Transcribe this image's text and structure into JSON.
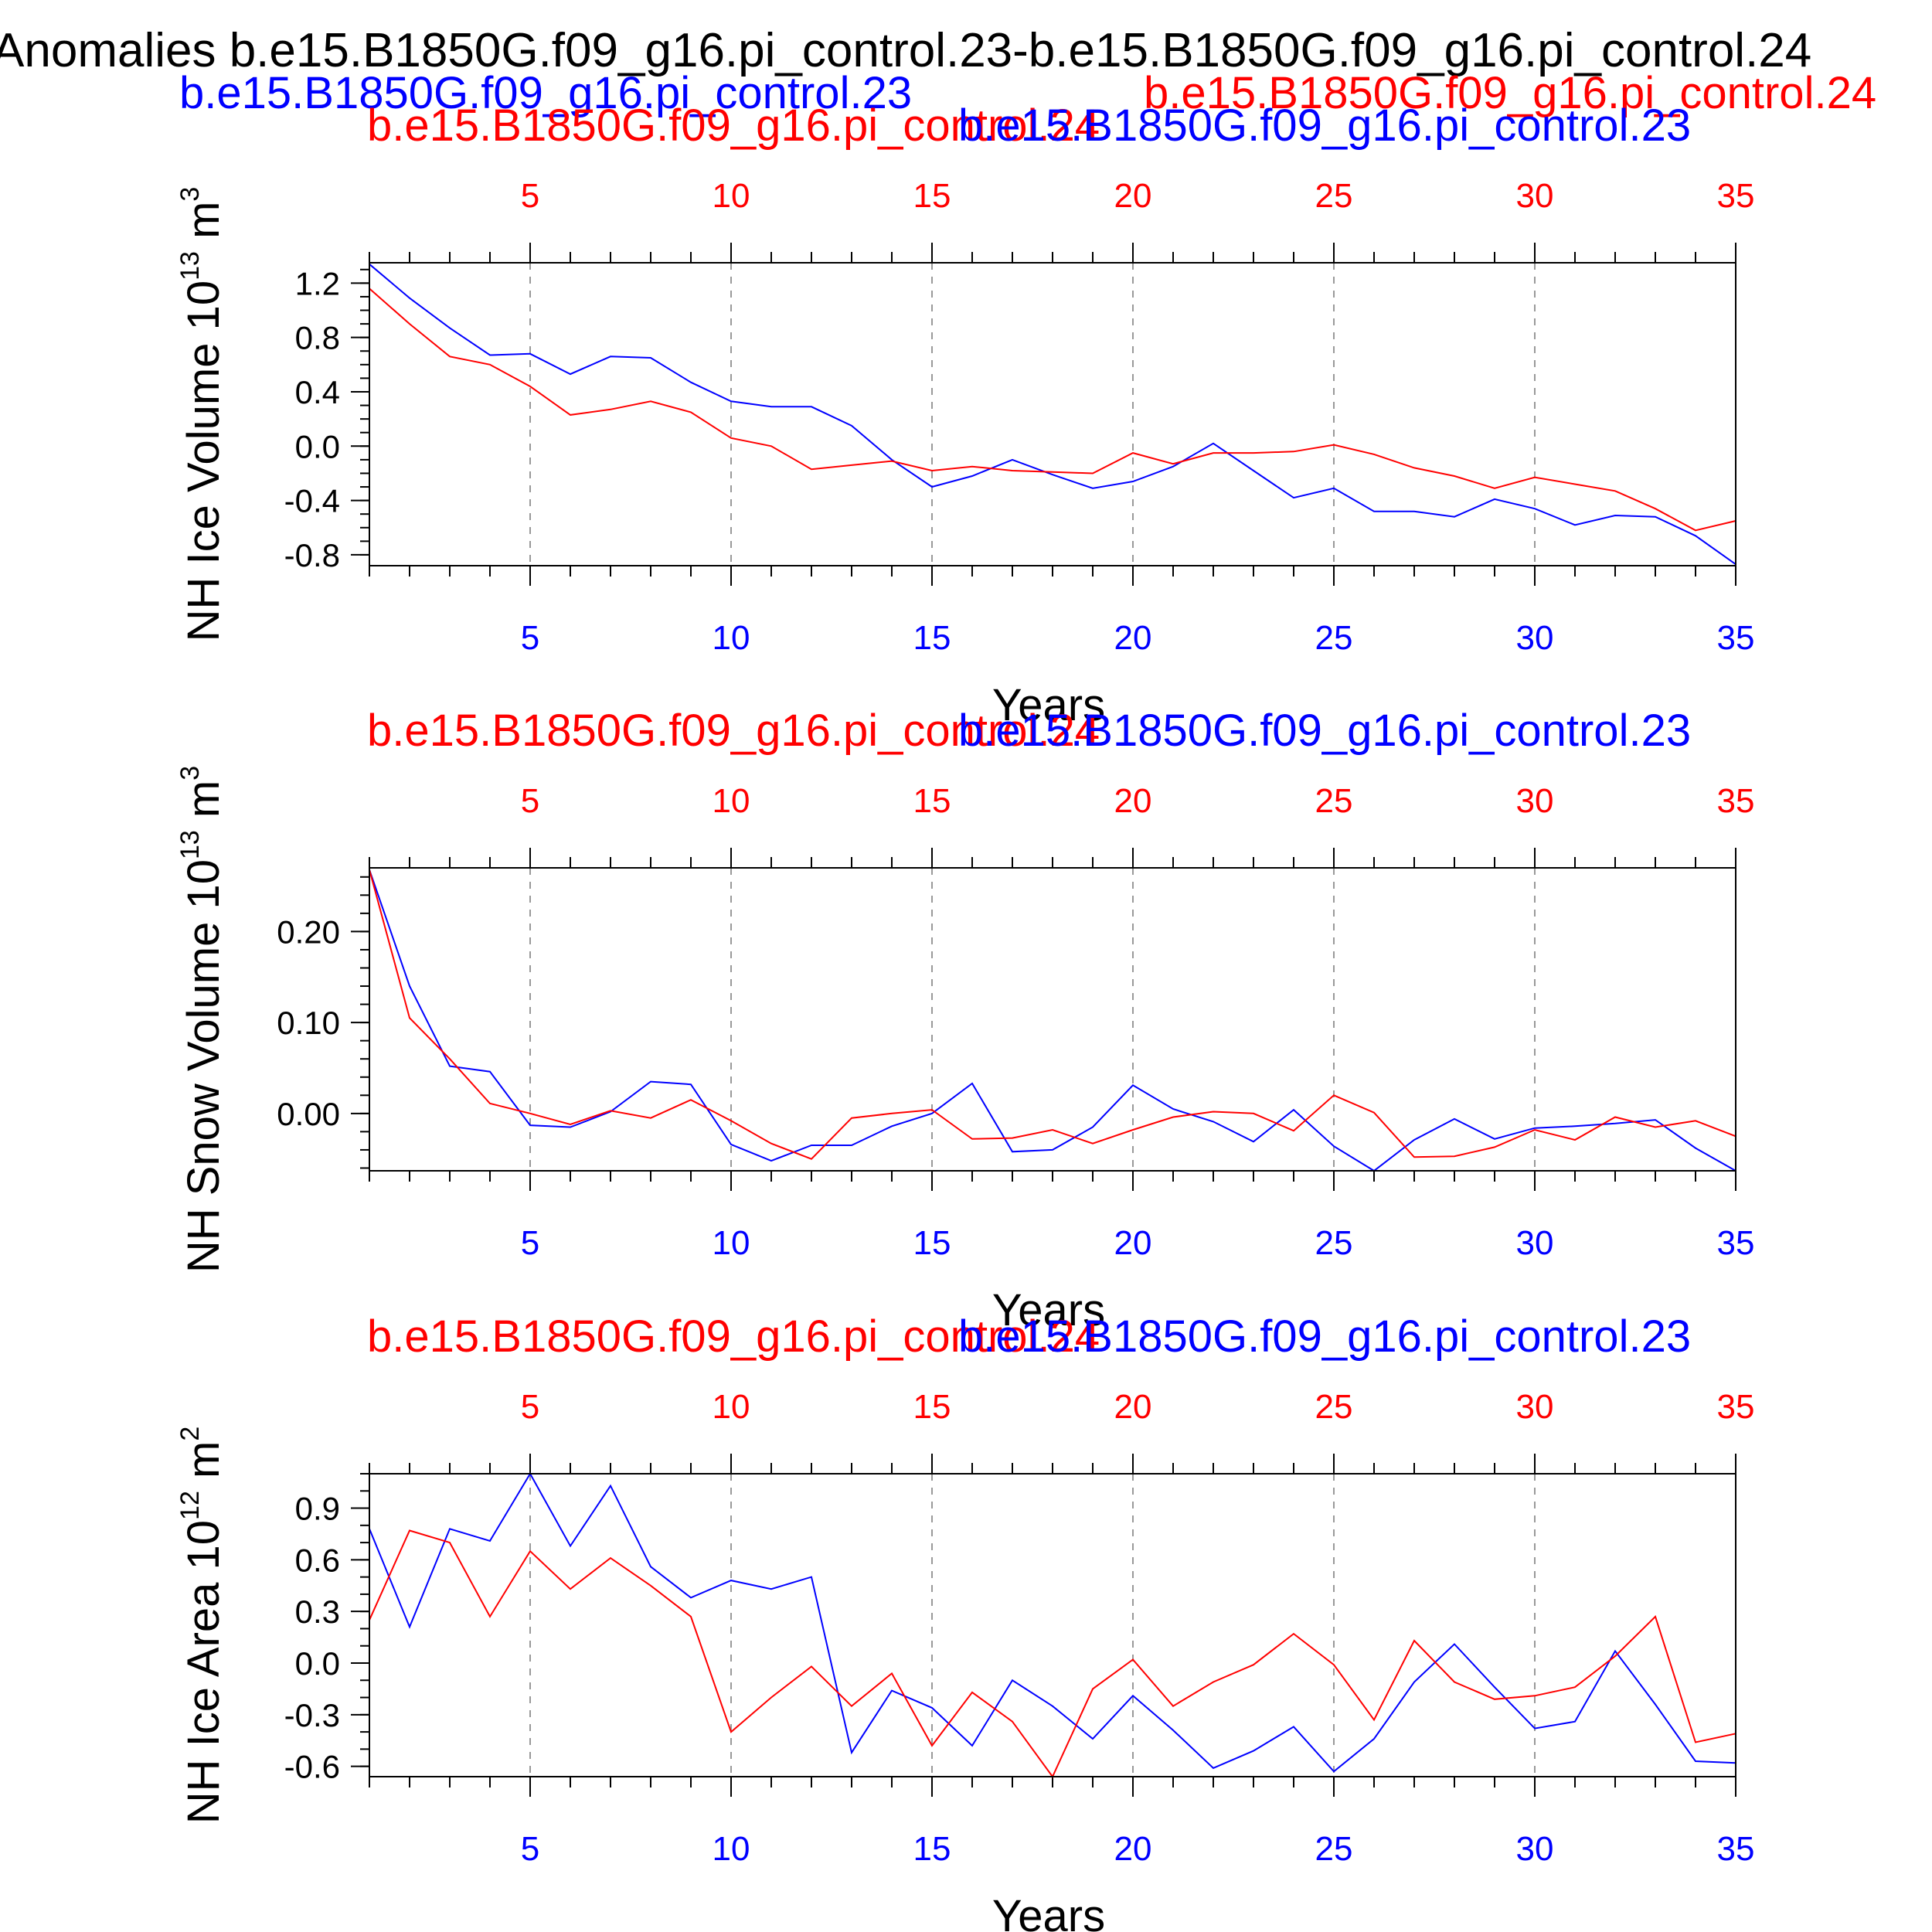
{
  "title": "Anomalies b.e15.B1850G.f09_g16.pi_control.23-b.e15.B1850G.f09_g16.pi_control.24",
  "legend": {
    "left": "b.e15.B1850G.f09_g16.pi_control.23",
    "right": "b.e15.B1850G.f09_g16.pi_control.24"
  },
  "colors": {
    "blue": "#0000ff",
    "red": "#ff0000",
    "black": "#000000",
    "grid": "#999999"
  },
  "chart_data": [
    {
      "type": "line",
      "title": "",
      "top_label_red": "b.e15.B1850G.f09_g16.pi_control.24",
      "top_label_blue": "b.e15.B1850G.f09_g16.pi_control.23",
      "ylabel": "NH Ice Volume",
      "ylabel_unit_base": "10",
      "ylabel_unit_exp": "13",
      "ylabel_unit_m": "m",
      "ylabel_unit_mexp": "3",
      "xlabel": "Years",
      "xlim": [
        1,
        35
      ],
      "ylim": [
        -0.88,
        1.35
      ],
      "xticks": [
        5,
        10,
        15,
        20,
        25,
        30,
        35
      ],
      "xtick_labels": [
        "5",
        "10",
        "15",
        "20",
        "25",
        "30",
        "35"
      ],
      "yticks": [
        -0.8,
        -0.4,
        0.0,
        0.4,
        0.8,
        1.2
      ],
      "ytick_labels": [
        "-0.8",
        "-0.4",
        "0.0",
        "0.4",
        "0.8",
        "1.2"
      ],
      "yminor_step": 0.1,
      "grid": "vertical dashed",
      "x": [
        1,
        2,
        3,
        4,
        5,
        6,
        7,
        8,
        9,
        10,
        11,
        12,
        13,
        14,
        15,
        16,
        17,
        18,
        19,
        20,
        21,
        22,
        23,
        24,
        25,
        26,
        27,
        28,
        29,
        30,
        31,
        32,
        33,
        34,
        35
      ],
      "series": [
        {
          "color": "blue",
          "values": [
            1.34,
            1.09,
            0.87,
            0.67,
            0.68,
            0.53,
            0.66,
            0.65,
            0.47,
            0.33,
            0.29,
            0.29,
            0.15,
            -0.1,
            -0.3,
            -0.22,
            -0.1,
            -0.21,
            -0.31,
            -0.26,
            -0.15,
            0.02,
            -0.18,
            -0.38,
            -0.31,
            -0.48,
            -0.48,
            -0.52,
            -0.39,
            -0.46,
            -0.58,
            -0.51,
            -0.52,
            -0.66,
            -0.87
          ]
        },
        {
          "color": "red",
          "values": [
            1.16,
            0.9,
            0.66,
            0.6,
            0.44,
            0.23,
            0.27,
            0.33,
            0.25,
            0.06,
            0.0,
            -0.17,
            -0.14,
            -0.11,
            -0.18,
            -0.15,
            -0.18,
            -0.19,
            -0.2,
            -0.05,
            -0.13,
            -0.05,
            -0.05,
            -0.04,
            0.01,
            -0.06,
            -0.16,
            -0.22,
            -0.31,
            -0.23,
            -0.28,
            -0.33,
            -0.46,
            -0.62,
            -0.55
          ]
        }
      ]
    },
    {
      "type": "line",
      "title": "",
      "top_label_red": "b.e15.B1850G.f09_g16.pi_control.24",
      "top_label_blue": "b.e15.B1850G.f09_g16.pi_control.23",
      "ylabel": "NH Snow Volume",
      "ylabel_unit_base": "10",
      "ylabel_unit_exp": "13",
      "ylabel_unit_m": "m",
      "ylabel_unit_mexp": "3",
      "xlabel": "Years",
      "xlim": [
        1,
        35
      ],
      "ylim": [
        -0.063,
        0.27
      ],
      "xticks": [
        5,
        10,
        15,
        20,
        25,
        30,
        35
      ],
      "xtick_labels": [
        "5",
        "10",
        "15",
        "20",
        "25",
        "30",
        "35"
      ],
      "yticks": [
        0.0,
        0.1,
        0.2
      ],
      "ytick_labels": [
        "0.00",
        "0.10",
        "0.20"
      ],
      "yminor_step": 0.02,
      "grid": "vertical dashed",
      "x": [
        1,
        2,
        3,
        4,
        5,
        6,
        7,
        8,
        9,
        10,
        11,
        12,
        13,
        14,
        15,
        16,
        17,
        18,
        19,
        20,
        21,
        22,
        23,
        24,
        25,
        26,
        27,
        28,
        29,
        30,
        31,
        32,
        33,
        34,
        35
      ],
      "series": [
        {
          "color": "blue",
          "values": [
            0.268,
            0.14,
            0.052,
            0.046,
            -0.013,
            -0.015,
            0.002,
            0.035,
            0.032,
            -0.034,
            -0.052,
            -0.035,
            -0.035,
            -0.014,
            0.0,
            0.033,
            -0.042,
            -0.04,
            -0.015,
            0.031,
            0.005,
            -0.009,
            -0.031,
            0.004,
            -0.036,
            -0.063,
            -0.029,
            -0.006,
            -0.028,
            -0.016,
            -0.014,
            -0.011,
            -0.007,
            -0.038,
            -0.063
          ]
        },
        {
          "color": "red",
          "values": [
            0.268,
            0.105,
            0.06,
            0.011,
            0.0,
            -0.012,
            0.003,
            -0.005,
            0.015,
            -0.008,
            -0.033,
            -0.05,
            -0.005,
            0.0,
            0.004,
            -0.028,
            -0.027,
            -0.018,
            -0.033,
            -0.018,
            -0.004,
            0.002,
            0.0,
            -0.019,
            0.02,
            0.001,
            -0.048,
            -0.047,
            -0.037,
            -0.018,
            -0.029,
            -0.004,
            -0.015,
            -0.008,
            -0.025
          ]
        }
      ]
    },
    {
      "type": "line",
      "title": "",
      "top_label_red": "b.e15.B1850G.f09_g16.pi_control.24",
      "top_label_blue": "b.e15.B1850G.f09_g16.pi_control.23",
      "ylabel": "NH Ice Area",
      "ylabel_unit_base": "10",
      "ylabel_unit_exp": "12",
      "ylabel_unit_m": "m",
      "ylabel_unit_mexp": "2",
      "xlabel": "Years",
      "xlim": [
        1,
        35
      ],
      "ylim": [
        -0.66,
        1.1
      ],
      "xticks": [
        5,
        10,
        15,
        20,
        25,
        30,
        35
      ],
      "xtick_labels": [
        "5",
        "10",
        "15",
        "20",
        "25",
        "30",
        "35"
      ],
      "yticks": [
        -0.6,
        -0.3,
        0.0,
        0.3,
        0.6,
        0.9
      ],
      "ytick_labels": [
        "-0.6",
        "-0.3",
        "0.0",
        "0.3",
        "0.6",
        "0.9"
      ],
      "yminor_step": 0.1,
      "grid": "vertical dashed",
      "x": [
        1,
        2,
        3,
        4,
        5,
        6,
        7,
        8,
        9,
        10,
        11,
        12,
        13,
        14,
        15,
        16,
        17,
        18,
        19,
        20,
        21,
        22,
        23,
        24,
        25,
        26,
        27,
        28,
        29,
        30,
        31,
        32,
        33,
        34,
        35
      ],
      "series": [
        {
          "color": "blue",
          "values": [
            0.78,
            0.21,
            0.78,
            0.71,
            1.1,
            0.68,
            1.03,
            0.56,
            0.38,
            0.48,
            0.43,
            0.5,
            -0.52,
            -0.16,
            -0.26,
            -0.48,
            -0.1,
            -0.25,
            -0.44,
            -0.19,
            -0.39,
            -0.61,
            -0.51,
            -0.37,
            -0.63,
            -0.44,
            -0.11,
            0.11,
            -0.14,
            -0.38,
            -0.34,
            0.07,
            -0.24,
            -0.57,
            -0.58
          ]
        },
        {
          "color": "red",
          "values": [
            0.25,
            0.77,
            0.7,
            0.27,
            0.65,
            0.43,
            0.61,
            0.45,
            0.27,
            -0.4,
            -0.2,
            -0.02,
            -0.25,
            -0.06,
            -0.48,
            -0.17,
            -0.34,
            -0.66,
            -0.15,
            0.02,
            -0.25,
            -0.11,
            -0.01,
            0.17,
            -0.01,
            -0.33,
            0.13,
            -0.11,
            -0.21,
            -0.19,
            -0.14,
            0.04,
            0.27,
            -0.46,
            -0.41
          ]
        }
      ]
    }
  ]
}
